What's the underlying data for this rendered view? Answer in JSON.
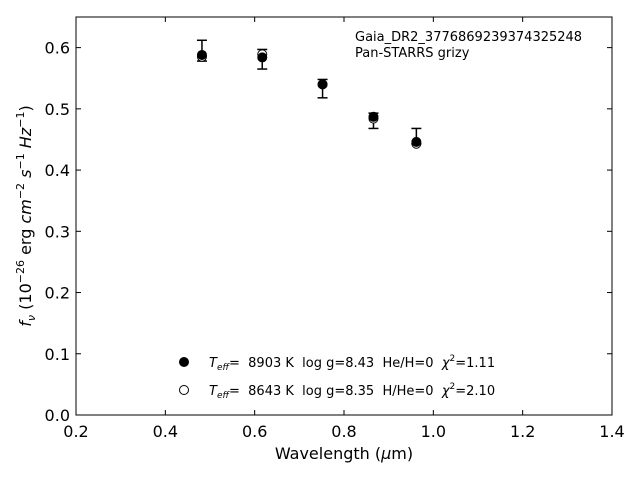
{
  "chart_data": {
    "type": "scatter",
    "title": "",
    "xlabel": "Wavelength (μm)",
    "ylabel": "f_ν (10^-26 erg cm^-2 s^-1 Hz^-1)",
    "xlim": [
      0.2,
      1.4
    ],
    "ylim": [
      0.0,
      0.65
    ],
    "x_ticks": [
      "0.2",
      "0.4",
      "0.6",
      "0.8",
      "1.0",
      "1.2",
      "1.4"
    ],
    "y_ticks": [
      "0.0",
      "0.1",
      "0.2",
      "0.3",
      "0.4",
      "0.5",
      "0.6"
    ],
    "grid": false,
    "annotation": [
      "Gaia_DR2_3776869239374325248",
      "Pan-STARRS grizy"
    ],
    "observed": {
      "x": [
        0.482,
        0.617,
        0.752,
        0.866,
        0.962
      ],
      "y_low": [
        0.578,
        0.565,
        0.518,
        0.468,
        0.443
      ],
      "y_high": [
        0.612,
        0.597,
        0.548,
        0.493,
        0.468
      ]
    },
    "series": [
      {
        "marker": "filled-circle",
        "legend": [
          "T",
          "eff",
          "=  8903 K  log g=8.43  He/H=0  ",
          "χ",
          "2",
          "=1.11"
        ],
        "x": [
          0.482,
          0.617,
          0.752,
          0.866,
          0.962
        ],
        "y": [
          0.588,
          0.584,
          0.54,
          0.487,
          0.446
        ]
      },
      {
        "marker": "open-circle",
        "legend": [
          "T",
          "eff",
          "=  8643 K  log g=8.35  H/He=0  ",
          "χ",
          "2",
          "=2.10"
        ],
        "x": [
          0.482,
          0.617,
          0.752,
          0.866,
          0.962
        ],
        "y": [
          0.585,
          0.589,
          0.54,
          0.484,
          0.443
        ]
      }
    ],
    "legend_position": "bottom-center"
  }
}
